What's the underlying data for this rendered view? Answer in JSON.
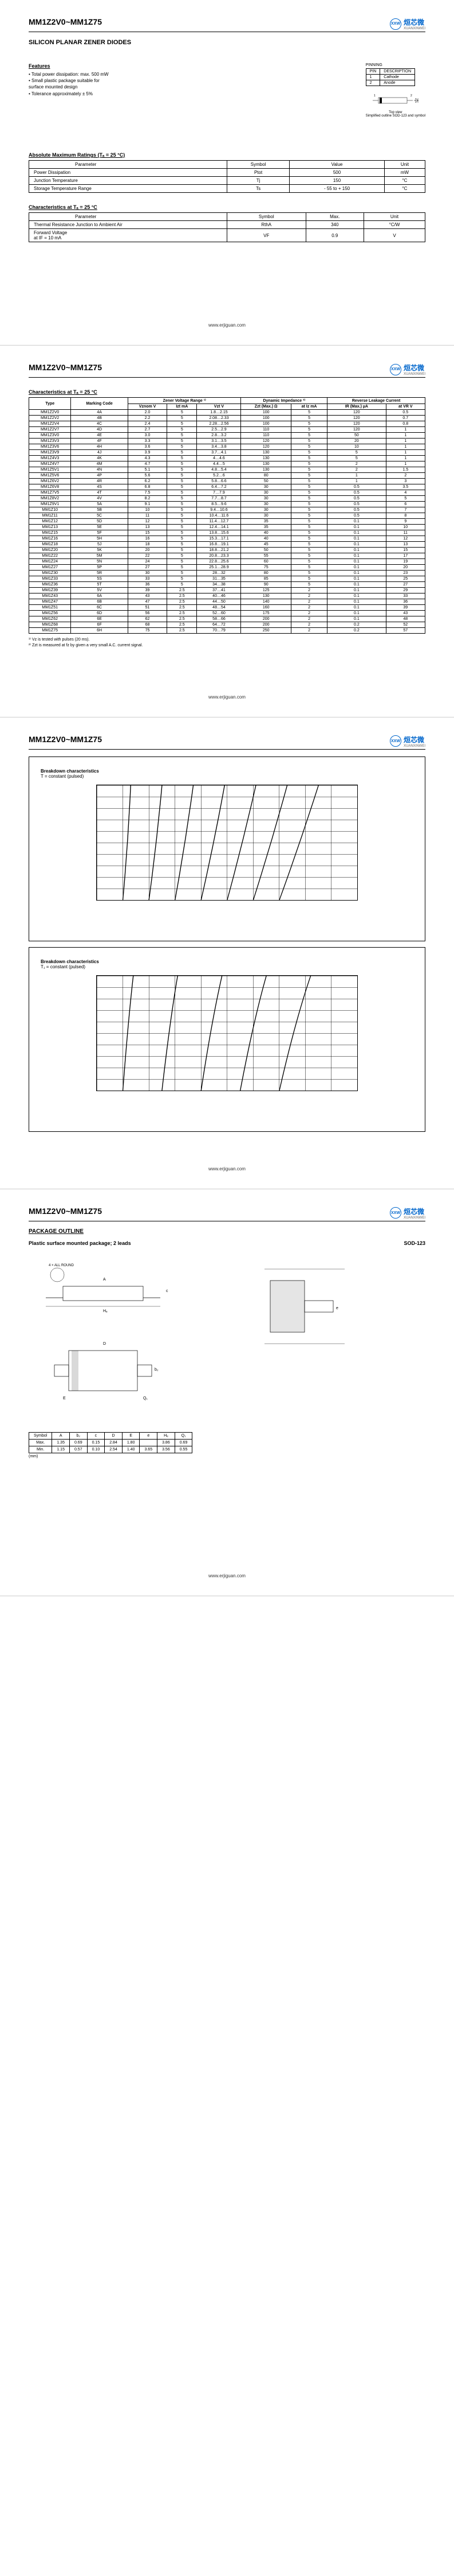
{
  "header": {
    "title": "MM1Z2V0~MM1Z75",
    "logo_brand": "烜芯微",
    "logo_sub": "XUANXINWEI",
    "logo_badge": "XXW"
  },
  "p1": {
    "subtitle": "SILICON PLANAR ZENER DIODES",
    "features_title": "Features",
    "features": [
      "• Total power dissipation: max. 500 mW",
      "• Small plastic package suitable for",
      "  surface mounted design",
      "• Tolerance approximately ± 5%"
    ],
    "pinning_title": "PINNING",
    "pinning_headers": [
      "PIN",
      "DESCRIPTION"
    ],
    "pinning_rows": [
      [
        "1",
        "Cathode"
      ],
      [
        "2",
        "Anode"
      ]
    ],
    "diode_caption1": "Top view",
    "diode_caption2": "Simplified outline SOD-123 and symbol",
    "abs_title": "Absolute Maximum Ratings (Tₐ = 25 °C)",
    "abs_headers": [
      "Parameter",
      "Symbol",
      "Value",
      "Unit"
    ],
    "abs_rows": [
      [
        "Power Dissipation",
        "Ptot",
        "500",
        "mW"
      ],
      [
        "Junction Temperature",
        "Tj",
        "150",
        "°C"
      ],
      [
        "Storage Temperature Range",
        "Ts",
        "- 55 to + 150",
        "°C"
      ]
    ],
    "char_title": "Characteristics at Tₐ = 25 °C",
    "char_headers": [
      "Parameter",
      "Symbol",
      "Max.",
      "Unit"
    ],
    "char_rows": [
      [
        "Thermal Resistance Junction to Ambient Air",
        "RthA",
        "340",
        "°C/W"
      ],
      [
        "Forward Voltage\nat IF = 10 mA",
        "VF",
        "0.9",
        "V"
      ]
    ]
  },
  "p2": {
    "title": "Characteristics at Tₐ = 25 °C",
    "group_headers": [
      "",
      "",
      "Zener Voltage Range ¹⁾",
      "",
      "",
      "Dynamic Impedance ²⁾",
      "",
      "Reverse Leakage Current",
      ""
    ],
    "col_headers": [
      "Type",
      "Marking Code",
      "Vznom V",
      "Izt mA",
      "Vzt V",
      "Zzt (Max.) Ω",
      "at Iz mA",
      "IR (Max.) µA",
      "at VR V"
    ],
    "rows": [
      [
        "MM1Z2V0",
        "4A",
        "2.0",
        "5",
        "1.8…2.15",
        "100",
        "5",
        "120",
        "0.5"
      ],
      [
        "MM1Z2V2",
        "4B",
        "2.2",
        "5",
        "2.08…2.33",
        "100",
        "5",
        "120",
        "0.7"
      ],
      [
        "MM1Z2V4",
        "4C",
        "2.4",
        "5",
        "2.28…2.56",
        "100",
        "5",
        "120",
        "0.8"
      ],
      [
        "MM1Z2V7",
        "4D",
        "2.7",
        "5",
        "2.5…2.9",
        "110",
        "5",
        "120",
        "1"
      ],
      [
        "MM1Z3V0",
        "4E",
        "3.0",
        "5",
        "2.8…3.2",
        "110",
        "5",
        "50",
        "1"
      ],
      [
        "MM1Z3V3",
        "4F",
        "3.3",
        "5",
        "3.1…3.5",
        "120",
        "5",
        "20",
        "1"
      ],
      [
        "MM1Z3V6",
        "4H",
        "3.6",
        "5",
        "3.4…3.8",
        "120",
        "5",
        "10",
        "1"
      ],
      [
        "MM1Z3V9",
        "4J",
        "3.9",
        "5",
        "3.7…4.1",
        "130",
        "5",
        "5",
        "1"
      ],
      [
        "MM1Z4V3",
        "4K",
        "4.3",
        "5",
        "4…4.6",
        "130",
        "5",
        "5",
        "1"
      ],
      [
        "MM1Z4V7",
        "4M",
        "4.7",
        "5",
        "4.4…5",
        "130",
        "5",
        "2",
        "1"
      ],
      [
        "MM1Z5V1",
        "4N",
        "5.1",
        "5",
        "4.8…5.4",
        "130",
        "5",
        "2",
        "1.5"
      ],
      [
        "MM1Z5V6",
        "4P",
        "5.6",
        "5",
        "5.2…6",
        "80",
        "5",
        "1",
        "2"
      ],
      [
        "MM1Z6V2",
        "4R",
        "6.2",
        "5",
        "5.8…6.6",
        "50",
        "5",
        "1",
        "3"
      ],
      [
        "MM1Z6V8",
        "4S",
        "6.8",
        "5",
        "6.4…7.2",
        "30",
        "5",
        "0.5",
        "3.5"
      ],
      [
        "MM1Z7V5",
        "4T",
        "7.5",
        "5",
        "7…7.9",
        "30",
        "5",
        "0.5",
        "4"
      ],
      [
        "MM1Z8V2",
        "4V",
        "8.2",
        "5",
        "7.7…8.7",
        "30",
        "5",
        "0.5",
        "5"
      ],
      [
        "MM1Z9V1",
        "5A",
        "9.1",
        "5",
        "8.5…9.6",
        "30",
        "5",
        "0.5",
        "6"
      ],
      [
        "MM1Z10",
        "5B",
        "10",
        "5",
        "9.4…10.6",
        "30",
        "5",
        "0.5",
        "7"
      ],
      [
        "MM1Z11",
        "5C",
        "11",
        "5",
        "10.4…11.6",
        "30",
        "5",
        "0.5",
        "8"
      ],
      [
        "MM1Z12",
        "5D",
        "12",
        "5",
        "11.4…12.7",
        "35",
        "5",
        "0.1",
        "9"
      ],
      [
        "MM1Z13",
        "5E",
        "13",
        "5",
        "12.4…14.1",
        "35",
        "5",
        "0.1",
        "10"
      ],
      [
        "MM1Z15",
        "5F",
        "15",
        "5",
        "13.8…15.6",
        "40",
        "5",
        "0.1",
        "11"
      ],
      [
        "MM1Z16",
        "5H",
        "16",
        "5",
        "15.3…17.1",
        "40",
        "5",
        "0.1",
        "12"
      ],
      [
        "MM1Z18",
        "5J",
        "18",
        "5",
        "16.8…19.1",
        "45",
        "5",
        "0.1",
        "13"
      ],
      [
        "MM1Z20",
        "5K",
        "20",
        "5",
        "18.8…21.2",
        "50",
        "5",
        "0.1",
        "15"
      ],
      [
        "MM1Z22",
        "5M",
        "22",
        "5",
        "20.8…23.3",
        "55",
        "5",
        "0.1",
        "17"
      ],
      [
        "MM1Z24",
        "5N",
        "24",
        "5",
        "22.8…25.6",
        "60",
        "5",
        "0.1",
        "19"
      ],
      [
        "MM1Z27",
        "5P",
        "27",
        "5",
        "25.1…28.9",
        "75",
        "5",
        "0.1",
        "20"
      ],
      [
        "MM1Z30",
        "5R",
        "30",
        "5",
        "28…32",
        "80",
        "5",
        "0.1",
        "23"
      ],
      [
        "MM1Z33",
        "5S",
        "33",
        "5",
        "31…35",
        "85",
        "5",
        "0.1",
        "25"
      ],
      [
        "MM1Z36",
        "5T",
        "36",
        "5",
        "34…38",
        "90",
        "5",
        "0.1",
        "27"
      ],
      [
        "MM1Z39",
        "5V",
        "39",
        "2.5",
        "37…41",
        "125",
        "2",
        "0.1",
        "29"
      ],
      [
        "MM1Z43",
        "6A",
        "43",
        "2.5",
        "40…46",
        "130",
        "2",
        "0.1",
        "33"
      ],
      [
        "MM1Z47",
        "6B",
        "47",
        "2.5",
        "44…50",
        "140",
        "2",
        "0.1",
        "36"
      ],
      [
        "MM1Z51",
        "6C",
        "51",
        "2.5",
        "48…54",
        "160",
        "2",
        "0.1",
        "39"
      ],
      [
        "MM1Z56",
        "6D",
        "56",
        "2.5",
        "52…60",
        "175",
        "2",
        "0.1",
        "43"
      ],
      [
        "MM1Z62",
        "6E",
        "62",
        "2.5",
        "58…66",
        "200",
        "2",
        "0.1",
        "48"
      ],
      [
        "MM1Z68",
        "6F",
        "68",
        "2.5",
        "64…72",
        "200",
        "2",
        "0.2",
        "52"
      ],
      [
        "MM1Z75",
        "6H",
        "75",
        "2.5",
        "70…79",
        "250",
        "2",
        "0.2",
        "57"
      ]
    ],
    "notes": [
      "¹⁾ Vz is tested with pulses (20 ms).",
      "²⁾ Zzt is measured at fz by given a very small A.C. current signal."
    ]
  },
  "p3": {
    "chart1_title": "Breakdown characteristics",
    "chart1_sub": "T = constant (pulsed)",
    "chart2_title": "Breakdown characteristics",
    "chart2_sub": "T₁ = constant (pulsed)"
  },
  "p4": {
    "pkg_title": "PACKAGE OUTLINE",
    "pkg_sub_left": "Plastic surface mounted package; 2 leads",
    "pkg_sub_right": "SOD-123",
    "dim_header": [
      "Symbol",
      "A",
      "b₂",
      "c",
      "D",
      "E",
      "e",
      "Hₑ",
      "Q₁"
    ],
    "dim_max": [
      "Max.",
      "1.35",
      "0.69",
      "0.15",
      "2.84",
      "1.80",
      "",
      "3.86",
      "0.69"
    ],
    "dim_min": [
      "Min.",
      "1.15",
      "0.57",
      "0.10",
      "2.54",
      "1.40",
      "3.65",
      "3.56",
      "0.55"
    ],
    "dim_note": "(mm)"
  },
  "footer": "www.erjiguan.com"
}
